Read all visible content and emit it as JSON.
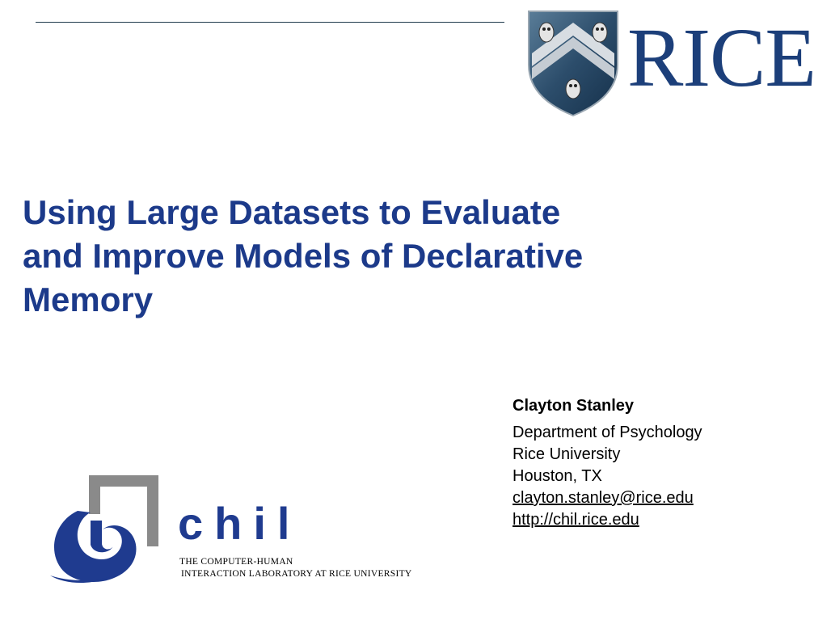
{
  "header": {
    "institution_wordmark": "RICE"
  },
  "title": {
    "lines": [
      "Using Large Datasets to Evaluate",
      "and Improve Models of Declarative",
      "Memory"
    ]
  },
  "author": {
    "name": "Clayton Stanley",
    "department": "Department of Psychology",
    "university": "Rice University",
    "location": "Houston, TX",
    "email": "clayton.stanley@rice.edu",
    "website": "http://chil.rice.edu"
  },
  "lab_logo": {
    "wordmark": "chil",
    "tagline_line1": "THE COMPUTER-HUMAN",
    "tagline_line2": "INTERACTION LABORATORY AT RICE UNIVERSITY"
  },
  "colors": {
    "title_blue": "#1c3a8a",
    "rice_blue": "#1c3f7a",
    "chil_blue": "#1f3b8f",
    "chil_gray": "#8a8a8a"
  },
  "icons": {
    "rice_shield": "rice-shield-icon",
    "chil_swirl": "chil-swirl-icon"
  }
}
